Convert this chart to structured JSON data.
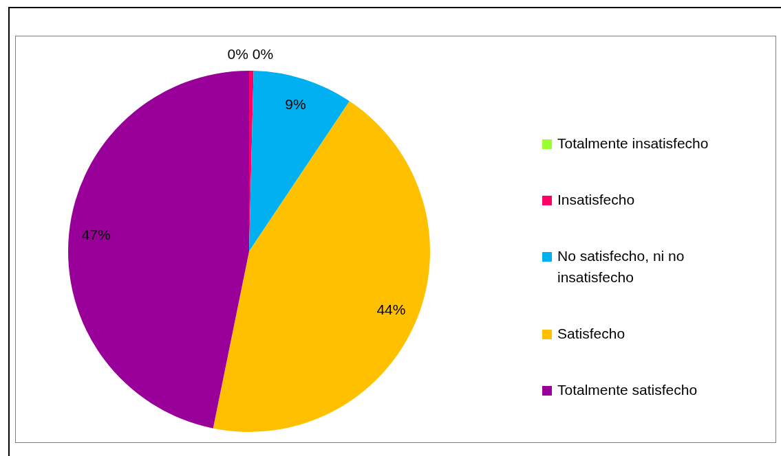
{
  "chart_data": {
    "type": "pie",
    "categories": [
      "Totalmente insatisfecho",
      "Insatisfecho",
      "No satisfecho, ni no insatisfecho",
      "Satisfecho",
      "Totalmente satisfecho"
    ],
    "values": [
      0,
      0.4,
      9,
      44,
      47
    ],
    "colors": [
      "#99ff33",
      "#ff0066",
      "#00b0f0",
      "#ffc000",
      "#990099"
    ],
    "value_labels": [
      "0%",
      "0%",
      "9%",
      "44%",
      "47%"
    ],
    "legend": "right"
  }
}
